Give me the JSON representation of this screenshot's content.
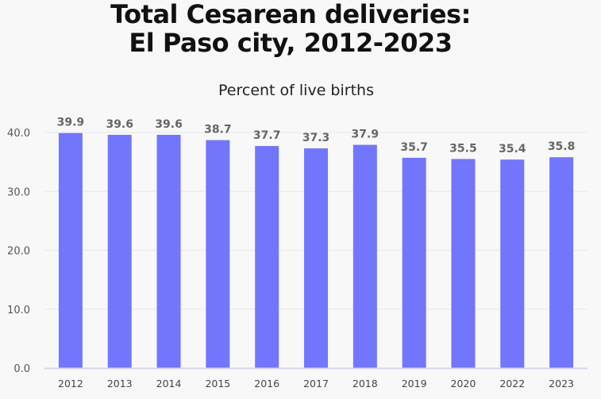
{
  "chart_data": {
    "type": "bar",
    "title": [
      "Total Cesarean deliveries:",
      "El Paso city, 2012-2023"
    ],
    "subtitle": "Percent of live births",
    "categories": [
      "2012",
      "2013",
      "2014",
      "2015",
      "2016",
      "2017",
      "2018",
      "2019",
      "2020",
      "2022",
      "2023"
    ],
    "values": [
      39.9,
      39.6,
      39.6,
      38.7,
      37.7,
      37.3,
      37.9,
      35.7,
      35.5,
      35.4,
      35.8
    ],
    "data_labels": [
      "39.9",
      "39.6",
      "39.6",
      "38.7",
      "37.7",
      "37.3",
      "37.9",
      "35.7",
      "35.5",
      "35.4",
      "35.8"
    ],
    "yticks": [
      "0.0",
      "10.0",
      "20.0",
      "30.0",
      "40.0"
    ],
    "ylim": [
      0,
      40
    ],
    "grid": true,
    "bar_color": "#7276fc"
  }
}
